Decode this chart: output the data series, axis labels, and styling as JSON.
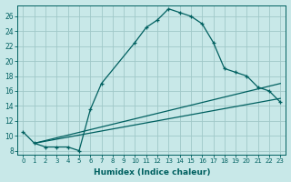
{
  "xlabel": "Humidex (Indice chaleur)",
  "bg_color": "#c8e8e8",
  "grid_color": "#a0c8c8",
  "line_color": "#006060",
  "xlim_min": -0.5,
  "xlim_max": 23.5,
  "ylim_min": 7.5,
  "ylim_max": 27.5,
  "xticks": [
    0,
    1,
    2,
    3,
    4,
    5,
    6,
    7,
    8,
    9,
    10,
    11,
    12,
    13,
    14,
    15,
    16,
    17,
    18,
    19,
    20,
    21,
    22,
    23
  ],
  "yticks": [
    8,
    10,
    12,
    14,
    16,
    18,
    20,
    22,
    24,
    26
  ],
  "series1_x": [
    0,
    1,
    2,
    3,
    4,
    5,
    6,
    7,
    10,
    11,
    12,
    13,
    14,
    15,
    16,
    17,
    18,
    19,
    20,
    21,
    22,
    23
  ],
  "series1_y": [
    10.5,
    9.0,
    8.5,
    8.5,
    8.5,
    8.0,
    13.5,
    17.0,
    22.5,
    24.5,
    25.5,
    27.0,
    26.5,
    26.0,
    25.0,
    22.5,
    19.0,
    18.5,
    18.0,
    16.5,
    16.0,
    14.5
  ],
  "series2_x": [
    1,
    23
  ],
  "series2_y": [
    9.0,
    15.0
  ],
  "series3_x": [
    1,
    23
  ],
  "series3_y": [
    9.0,
    17.0
  ]
}
